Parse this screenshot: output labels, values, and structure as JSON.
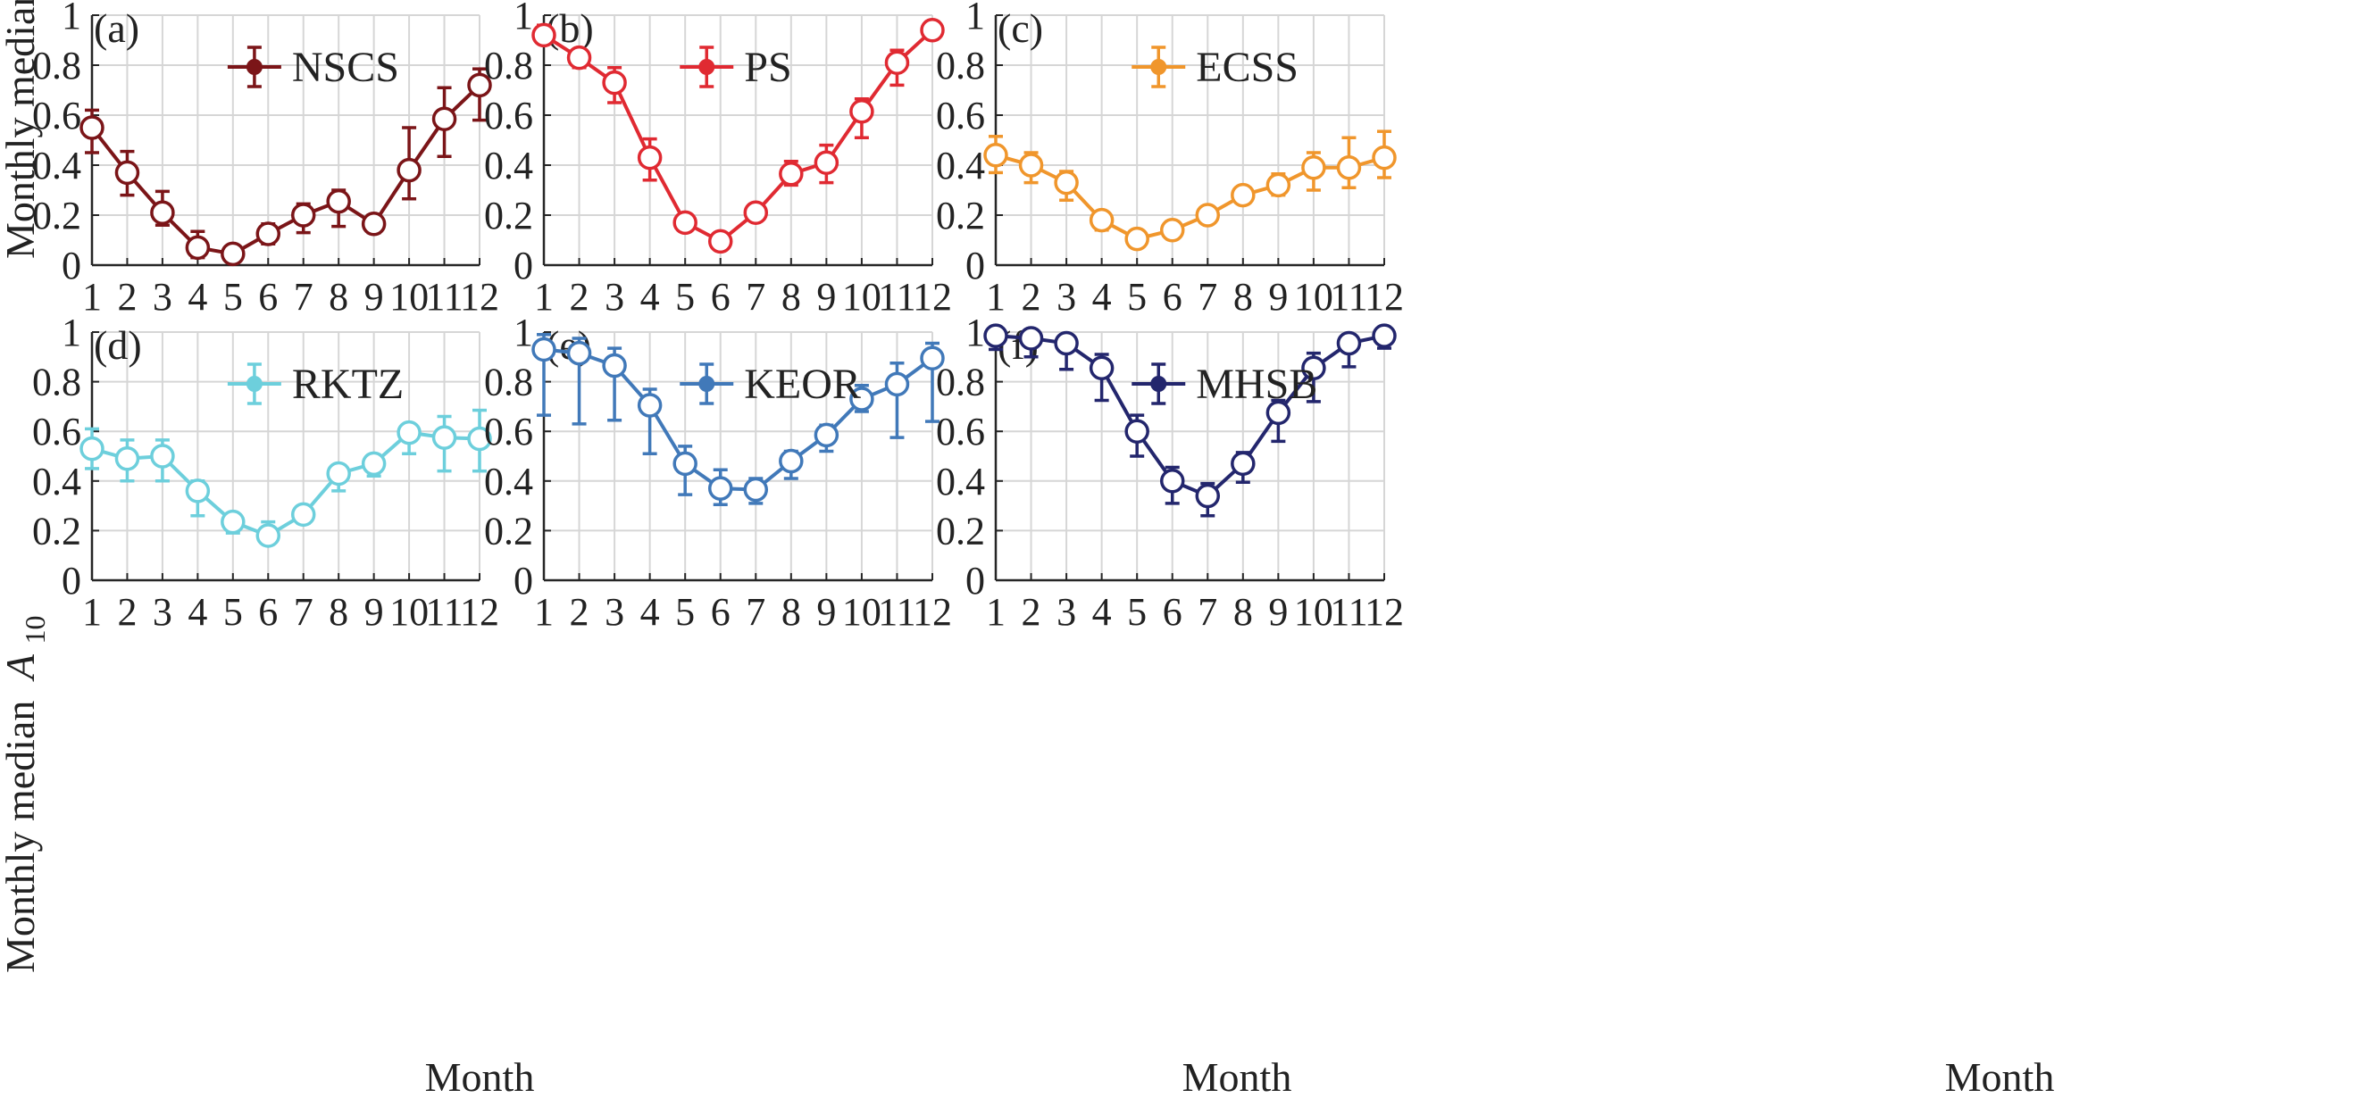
{
  "figure": {
    "y_axis_label": "Monthly median",
    "y_axis_symbol": "A",
    "y_axis_subscript": "10",
    "x_axis_label": "Month"
  },
  "chart_data": [
    {
      "type": "line",
      "panel_label": "(a)",
      "series": [
        {
          "name": "NSCS",
          "color": "#7b1518",
          "values": [
            0.55,
            0.37,
            0.21,
            0.07,
            0.045,
            0.125,
            0.2,
            0.255,
            0.165,
            0.38,
            0.585,
            0.72
          ],
          "lower": [
            0.45,
            0.28,
            0.16,
            0.03,
            0.015,
            0.085,
            0.13,
            0.155,
            0.13,
            0.265,
            0.435,
            0.58
          ],
          "upper": [
            0.62,
            0.455,
            0.295,
            0.135,
            0.07,
            0.165,
            0.245,
            0.3,
            0.2,
            0.55,
            0.71,
            0.785
          ]
        }
      ],
      "x": [
        1,
        2,
        3,
        4,
        5,
        6,
        7,
        8,
        9,
        10,
        11,
        12
      ],
      "xlim": [
        1,
        12
      ],
      "ylim": [
        0,
        1
      ],
      "x_ticks": [
        "1",
        "2",
        "3",
        "4",
        "5",
        "6",
        "7",
        "8",
        "9",
        "10",
        "11",
        "12"
      ],
      "y_ticks": [
        "0",
        "0.2",
        "0.4",
        "0.6",
        "0.8",
        "1"
      ],
      "grid": true,
      "legend_position": "top-center",
      "marker": "open-circle"
    },
    {
      "type": "line",
      "panel_label": "(b)",
      "series": [
        {
          "name": "PS",
          "color": "#e02a32",
          "values": [
            0.92,
            0.83,
            0.73,
            0.43,
            0.17,
            0.095,
            0.21,
            0.365,
            0.41,
            0.615,
            0.81,
            0.94
          ],
          "lower": [
            0.89,
            0.79,
            0.65,
            0.34,
            0.14,
            0.08,
            0.18,
            0.32,
            0.33,
            0.51,
            0.72,
            0.92
          ],
          "upper": [
            0.96,
            0.86,
            0.79,
            0.505,
            0.2,
            0.11,
            0.235,
            0.415,
            0.48,
            0.665,
            0.86,
            0.955
          ]
        }
      ],
      "x": [
        1,
        2,
        3,
        4,
        5,
        6,
        7,
        8,
        9,
        10,
        11,
        12
      ],
      "xlim": [
        1,
        12
      ],
      "ylim": [
        0,
        1
      ],
      "x_ticks": [
        "1",
        "2",
        "3",
        "4",
        "5",
        "6",
        "7",
        "8",
        "9",
        "10",
        "11",
        "12"
      ],
      "y_ticks": [
        "0",
        "0.2",
        "0.4",
        "0.6",
        "0.8",
        "1"
      ],
      "grid": true,
      "legend_position": "top-center",
      "marker": "open-circle"
    },
    {
      "type": "line",
      "panel_label": "(c)",
      "series": [
        {
          "name": "ECSS",
          "color": "#f0962c",
          "values": [
            0.44,
            0.4,
            0.33,
            0.18,
            0.105,
            0.14,
            0.2,
            0.28,
            0.32,
            0.39,
            0.39,
            0.43
          ],
          "lower": [
            0.37,
            0.33,
            0.26,
            0.14,
            0.09,
            0.115,
            0.175,
            0.25,
            0.28,
            0.3,
            0.31,
            0.35
          ],
          "upper": [
            0.515,
            0.45,
            0.375,
            0.2,
            0.125,
            0.165,
            0.225,
            0.305,
            0.365,
            0.45,
            0.51,
            0.535
          ]
        }
      ],
      "x": [
        1,
        2,
        3,
        4,
        5,
        6,
        7,
        8,
        9,
        10,
        11,
        12
      ],
      "xlim": [
        1,
        12
      ],
      "ylim": [
        0,
        1
      ],
      "x_ticks": [
        "1",
        "2",
        "3",
        "4",
        "5",
        "6",
        "7",
        "8",
        "9",
        "10",
        "11",
        "12"
      ],
      "y_ticks": [
        "0",
        "0.2",
        "0.4",
        "0.6",
        "0.8",
        "1"
      ],
      "grid": true,
      "legend_position": "top-center",
      "marker": "open-circle"
    },
    {
      "type": "line",
      "panel_label": "(d)",
      "series": [
        {
          "name": "RKTZ",
          "color": "#6dcfdc",
          "values": [
            0.53,
            0.49,
            0.5,
            0.36,
            0.235,
            0.18,
            0.265,
            0.43,
            0.47,
            0.595,
            0.575,
            0.57
          ],
          "lower": [
            0.45,
            0.4,
            0.4,
            0.26,
            0.19,
            0.155,
            0.23,
            0.36,
            0.42,
            0.51,
            0.44,
            0.44
          ],
          "upper": [
            0.61,
            0.565,
            0.565,
            0.4,
            0.25,
            0.235,
            0.285,
            0.46,
            0.505,
            0.625,
            0.66,
            0.685
          ]
        }
      ],
      "x": [
        1,
        2,
        3,
        4,
        5,
        6,
        7,
        8,
        9,
        10,
        11,
        12
      ],
      "xlim": [
        1,
        12
      ],
      "ylim": [
        0,
        1
      ],
      "x_ticks": [
        "1",
        "2",
        "3",
        "4",
        "5",
        "6",
        "7",
        "8",
        "9",
        "10",
        "11",
        "12"
      ],
      "y_ticks": [
        "0",
        "0.2",
        "0.4",
        "0.6",
        "0.8",
        "1"
      ],
      "grid": true,
      "legend_position": "top-center",
      "marker": "open-circle"
    },
    {
      "type": "line",
      "panel_label": "(e)",
      "series": [
        {
          "name": "KEOR",
          "color": "#4179b9",
          "values": [
            0.93,
            0.915,
            0.865,
            0.705,
            0.47,
            0.37,
            0.365,
            0.48,
            0.585,
            0.73,
            0.79,
            0.895
          ],
          "lower": [
            0.665,
            0.63,
            0.645,
            0.51,
            0.345,
            0.305,
            0.31,
            0.41,
            0.52,
            0.68,
            0.575,
            0.64
          ],
          "upper": [
            0.99,
            0.975,
            0.935,
            0.77,
            0.54,
            0.445,
            0.41,
            0.52,
            0.625,
            0.785,
            0.875,
            0.955
          ]
        }
      ],
      "x": [
        1,
        2,
        3,
        4,
        5,
        6,
        7,
        8,
        9,
        10,
        11,
        12
      ],
      "xlim": [
        1,
        12
      ],
      "ylim": [
        0,
        1
      ],
      "x_ticks": [
        "1",
        "2",
        "3",
        "4",
        "5",
        "6",
        "7",
        "8",
        "9",
        "10",
        "11",
        "12"
      ],
      "y_ticks": [
        "0",
        "0.2",
        "0.4",
        "0.6",
        "0.8",
        "1"
      ],
      "grid": true,
      "legend_position": "top-center",
      "marker": "open-circle"
    },
    {
      "type": "line",
      "panel_label": "(f)",
      "series": [
        {
          "name": "MHSB",
          "color": "#23266d",
          "values": [
            0.985,
            0.975,
            0.955,
            0.855,
            0.6,
            0.4,
            0.34,
            0.47,
            0.675,
            0.855,
            0.955,
            0.985
          ],
          "lower": [
            0.93,
            0.9,
            0.85,
            0.725,
            0.5,
            0.31,
            0.26,
            0.395,
            0.56,
            0.72,
            0.86,
            0.935
          ],
          "upper": [
            1.0,
            1.0,
            0.975,
            0.91,
            0.665,
            0.455,
            0.39,
            0.515,
            0.725,
            0.915,
            0.99,
            1.0
          ]
        }
      ],
      "x": [
        1,
        2,
        3,
        4,
        5,
        6,
        7,
        8,
        9,
        10,
        11,
        12
      ],
      "xlim": [
        1,
        12
      ],
      "ylim": [
        0,
        1
      ],
      "x_ticks": [
        "1",
        "2",
        "3",
        "4",
        "5",
        "6",
        "7",
        "8",
        "9",
        "10",
        "11",
        "12"
      ],
      "y_ticks": [
        "0",
        "0.2",
        "0.4",
        "0.6",
        "0.8",
        "1"
      ],
      "grid": true,
      "legend_position": "top-center",
      "marker": "open-circle"
    }
  ]
}
